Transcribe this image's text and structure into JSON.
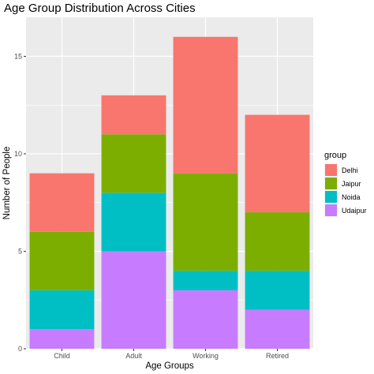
{
  "chart_data": {
    "type": "bar",
    "stacked": true,
    "title": "Age Group Distribution Across Cities",
    "xlabel": "Age Groups",
    "ylabel": "Number of People",
    "categories": [
      "Child",
      "Adult",
      "Working",
      "Retired"
    ],
    "ylim": [
      0,
      17
    ],
    "yticks": [
      "0",
      "5",
      "10",
      "15"
    ],
    "grid": true,
    "legend": {
      "title": "group",
      "position": "right"
    },
    "series": [
      {
        "name": "Delhi",
        "color": "#F8766D",
        "values": [
          3,
          2,
          7,
          5
        ]
      },
      {
        "name": "Jaipur",
        "color": "#7CAE00",
        "values": [
          3,
          3,
          5,
          3
        ]
      },
      {
        "name": "Noida",
        "color": "#00BFC4",
        "values": [
          2,
          3,
          1,
          2
        ]
      },
      {
        "name": "Udaipur",
        "color": "#C77CFF",
        "values": [
          1,
          5,
          3,
          2
        ]
      }
    ],
    "panel_color": "#EBEBEB",
    "grid_color": "#FFFFFF"
  }
}
